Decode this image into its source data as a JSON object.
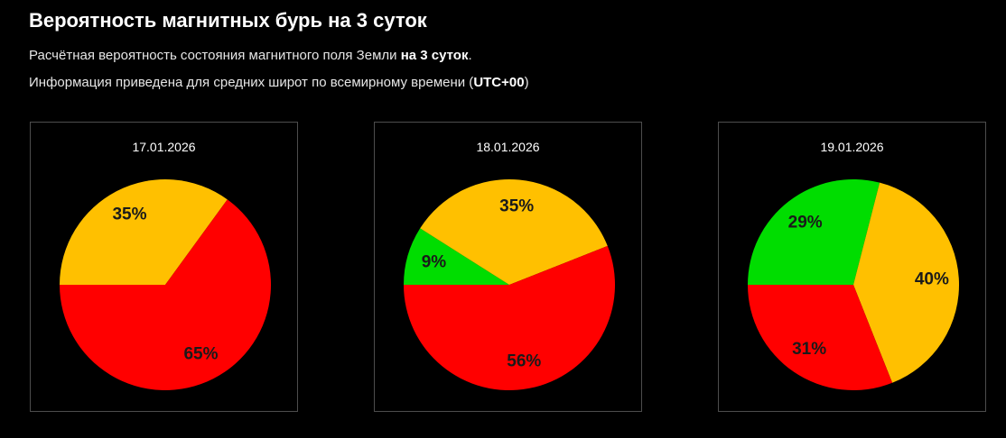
{
  "header": {
    "title": "Вероятность магнитных бурь на 3 суток",
    "line1_text": "Расчётная вероятность состояния магнитного поля Земли ",
    "line1_bold": "на 3 суток",
    "line1_end": ".",
    "line2_text": "Информация приведена для средних широт по всемирному времени (",
    "line2_bold": "UTC+00",
    "line2_end": ")"
  },
  "colors": {
    "green": "#00dd00",
    "yellow": "#ffc000",
    "red": "#ff0000",
    "background": "#000000"
  },
  "chart_data": [
    {
      "type": "pie",
      "title": "17.01.2026",
      "slices": [
        {
          "label": "35%",
          "value": 35,
          "color": "yellow"
        },
        {
          "label": "65%",
          "value": 65,
          "color": "red"
        }
      ]
    },
    {
      "type": "pie",
      "title": "18.01.2026",
      "slices": [
        {
          "label": "9%",
          "value": 9,
          "color": "green"
        },
        {
          "label": "35%",
          "value": 35,
          "color": "yellow"
        },
        {
          "label": "56%",
          "value": 56,
          "color": "red"
        }
      ]
    },
    {
      "type": "pie",
      "title": "19.01.2026",
      "slices": [
        {
          "label": "29%",
          "value": 29,
          "color": "green"
        },
        {
          "label": "40%",
          "value": 40,
          "color": "yellow"
        },
        {
          "label": "31%",
          "value": 31,
          "color": "red"
        }
      ]
    }
  ]
}
